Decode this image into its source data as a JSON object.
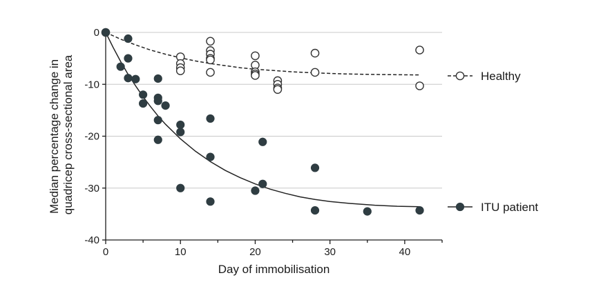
{
  "chart_data": {
    "type": "scatter",
    "xlabel": "Day of immobilisation",
    "ylabel_lines": [
      "Median percentage change in",
      "quadricep cross-sectional area"
    ],
    "xlim": [
      0,
      45
    ],
    "ylim": [
      -40,
      0
    ],
    "xticks": [
      0,
      10,
      20,
      30,
      40
    ],
    "yticks": [
      0,
      -10,
      -20,
      -30,
      -40
    ],
    "grid": "horizontal",
    "legend_position": "right",
    "series": [
      {
        "name": "Healthy",
        "marker": "open-circle",
        "line": "dashed",
        "color": "#333333",
        "points": [
          [
            0,
            0
          ],
          [
            10,
            -4.7
          ],
          [
            10,
            -6
          ],
          [
            10,
            -6.8
          ],
          [
            10,
            -7.4
          ],
          [
            14,
            -1.7
          ],
          [
            14,
            -3.5
          ],
          [
            14,
            -4.2
          ],
          [
            14,
            -5
          ],
          [
            14,
            -5.3
          ],
          [
            14,
            -7.7
          ],
          [
            20,
            -4.5
          ],
          [
            20,
            -6.3
          ],
          [
            20,
            -7.6
          ],
          [
            20,
            -8
          ],
          [
            20,
            -8.3
          ],
          [
            23,
            -9.3
          ],
          [
            23,
            -10
          ],
          [
            23,
            -10.7
          ],
          [
            23,
            -11
          ],
          [
            28,
            -4
          ],
          [
            28,
            -7.7
          ],
          [
            42,
            -3.4
          ],
          [
            42,
            -10.3
          ]
        ],
        "fit": [
          [
            0,
            0
          ],
          [
            2,
            -1.3
          ],
          [
            4,
            -2.4
          ],
          [
            6,
            -3.4
          ],
          [
            8,
            -4.2
          ],
          [
            10,
            -4.9
          ],
          [
            12,
            -5.5
          ],
          [
            14,
            -6
          ],
          [
            16,
            -6.4
          ],
          [
            18,
            -6.8
          ],
          [
            20,
            -7.1
          ],
          [
            22,
            -7.3
          ],
          [
            25,
            -7.6
          ],
          [
            28,
            -7.8
          ],
          [
            32,
            -8
          ],
          [
            36,
            -8.1
          ],
          [
            42,
            -8.2
          ]
        ]
      },
      {
        "name": "ITU patient",
        "marker": "filled-circle",
        "line": "solid",
        "color": "#2f3d42",
        "points": [
          [
            0,
            0
          ],
          [
            2,
            -6.6
          ],
          [
            3,
            -1.2
          ],
          [
            3,
            -5
          ],
          [
            3,
            -8.8
          ],
          [
            4,
            -9
          ],
          [
            5,
            -12
          ],
          [
            5,
            -13.7
          ],
          [
            7,
            -8.9
          ],
          [
            7,
            -12.6
          ],
          [
            7,
            -13.2
          ],
          [
            7,
            -16.9
          ],
          [
            7,
            -20.7
          ],
          [
            8,
            -14.1
          ],
          [
            10,
            -17.8
          ],
          [
            10,
            -19.2
          ],
          [
            10,
            -30
          ],
          [
            14,
            -16.6
          ],
          [
            14,
            -24
          ],
          [
            14,
            -32.6
          ],
          [
            20,
            -30.5
          ],
          [
            21,
            -21.1
          ],
          [
            21,
            -29.2
          ],
          [
            28,
            -26.1
          ],
          [
            28,
            -34.3
          ],
          [
            35,
            -34.5
          ],
          [
            42,
            -34.3
          ]
        ],
        "fit": [
          [
            0,
            0
          ],
          [
            1,
            -2.9
          ],
          [
            2,
            -5.6
          ],
          [
            3,
            -8.1
          ],
          [
            4,
            -10.3
          ],
          [
            5,
            -12.4
          ],
          [
            6,
            -14.3
          ],
          [
            7,
            -16.1
          ],
          [
            8,
            -17.7
          ],
          [
            10,
            -20.5
          ],
          [
            12,
            -22.9
          ],
          [
            14,
            -24.9
          ],
          [
            16,
            -26.6
          ],
          [
            18,
            -28
          ],
          [
            20,
            -29.2
          ],
          [
            22,
            -30.2
          ],
          [
            24,
            -31
          ],
          [
            26,
            -31.7
          ],
          [
            28,
            -32.2
          ],
          [
            30,
            -32.6
          ],
          [
            33,
            -33
          ],
          [
            36,
            -33.3
          ],
          [
            39,
            -33.5
          ],
          [
            42,
            -33.6
          ]
        ]
      }
    ]
  }
}
